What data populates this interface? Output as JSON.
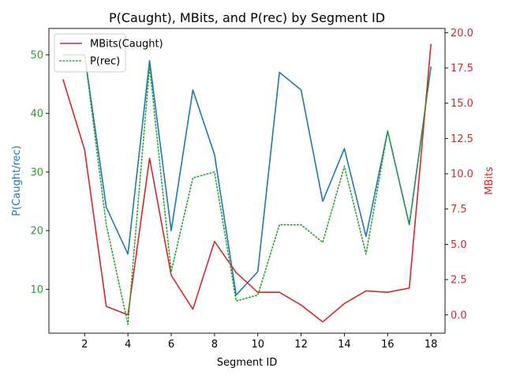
{
  "chart_data": {
    "type": "line",
    "title": "P(Caught), MBits, and P(rec) by Segment ID",
    "xlabel": "Segment ID",
    "ylabel_left": "P(Caught/rec)",
    "ylabel_right": "MBits",
    "x": [
      1,
      2,
      3,
      4,
      5,
      6,
      7,
      8,
      9,
      10,
      11,
      12,
      13,
      14,
      15,
      16,
      17,
      18
    ],
    "xlim": [
      0.35,
      18.65
    ],
    "ylim_left": [
      2.5,
      54.5
    ],
    "ylim_right": [
      -1.3,
      20.3
    ],
    "x_ticks": [
      2,
      4,
      6,
      8,
      10,
      12,
      14,
      16,
      18
    ],
    "y_ticks_left": [
      10,
      20,
      30,
      40,
      50
    ],
    "y_ticks_right": [
      0.0,
      2.5,
      5.0,
      7.5,
      10.0,
      12.5,
      15.0,
      17.5,
      20.0
    ],
    "series": [
      {
        "axis": "left",
        "color": "#1f77b4",
        "style": "solid",
        "values": [
          50,
          50,
          24,
          16,
          49,
          20,
          44,
          33,
          9,
          13,
          47,
          44,
          25,
          34,
          19,
          37,
          21,
          48
        ]
      },
      {
        "name": "MBits",
        "axis": "right",
        "color": "#d62728",
        "style": "solid",
        "values": [
          16.7,
          11.7,
          0.6,
          0.0,
          11.1,
          2.8,
          0.4,
          5.2,
          3.0,
          1.6,
          1.6,
          0.7,
          -0.5,
          0.8,
          1.7,
          1.6,
          1.9,
          19.2
        ]
      },
      {
        "name": "P(rec)",
        "axis": "left",
        "color": "#2ca02c",
        "style": "dotted",
        "values": [
          50,
          50,
          21,
          4,
          48,
          13,
          29,
          30,
          8,
          9,
          21,
          21,
          18,
          31,
          16,
          37,
          21,
          48
        ]
      }
    ],
    "legend": {
      "position": "top-left",
      "entries": [
        {
          "label": "MBits(Caught)",
          "color": "#d62728",
          "style": "solid"
        },
        {
          "label": "P(rec)",
          "color": "#2ca02c",
          "style": "dotted"
        }
      ]
    },
    "left_tick_color": "#2ca02c",
    "left_label_color": "#1f77b4",
    "right_tick_color": "#d62728",
    "right_label_color": "#d62728",
    "grid": false
  }
}
